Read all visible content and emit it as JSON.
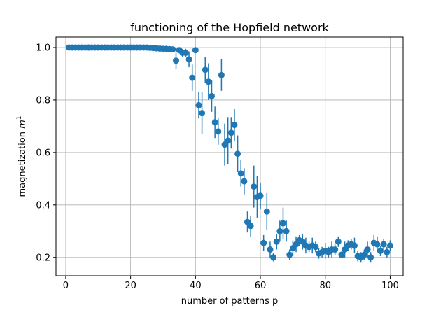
{
  "chart_data": {
    "type": "scatter",
    "title": "functioning of the Hopfield network",
    "xlabel": "number of patterns p",
    "ylabel_main": "magnetization ",
    "ylabel_var": "m",
    "ylabel_sup": "1",
    "xlim": [
      -3,
      104
    ],
    "ylim": [
      0.13,
      1.04
    ],
    "xticks": [
      0,
      20,
      40,
      60,
      80,
      100
    ],
    "yticks": [
      0.2,
      0.4,
      0.6,
      0.8,
      1.0
    ],
    "xtick_labels": [
      "0",
      "20",
      "40",
      "60",
      "80",
      "100"
    ],
    "ytick_labels": [
      "0.2",
      "0.4",
      "0.6",
      "0.8",
      "1.0"
    ],
    "grid": true,
    "color": "#1f77b4",
    "series": [
      {
        "x": [
          1,
          2,
          3,
          4,
          5,
          6,
          7,
          8,
          9,
          10,
          11,
          12,
          13,
          14,
          15,
          16,
          17,
          18,
          19,
          20,
          21,
          22,
          23,
          24,
          25,
          26,
          27,
          28,
          29,
          30,
          31,
          32,
          33,
          34,
          35,
          36,
          37,
          38,
          39,
          40,
          41,
          42,
          43,
          44,
          45,
          46,
          47,
          48,
          49,
          50,
          51,
          52,
          53,
          54,
          55,
          56,
          57,
          58,
          59,
          60,
          61,
          62,
          63,
          64,
          65,
          66,
          67,
          68,
          69,
          70,
          71,
          72,
          73,
          74,
          75,
          76,
          77,
          78,
          79,
          80,
          81,
          82,
          83,
          84,
          85,
          86,
          87,
          88,
          89,
          90,
          91,
          92,
          93,
          94,
          95,
          96,
          97,
          98,
          99,
          100
        ],
        "y": [
          1.0,
          1.0,
          1.0,
          1.0,
          1.0,
          1.0,
          1.0,
          1.0,
          1.0,
          1.0,
          1.0,
          1.0,
          1.0,
          1.0,
          1.0,
          1.0,
          1.0,
          1.0,
          1.0,
          1.0,
          1.0,
          1.0,
          1.0,
          1.0,
          1.0,
          0.999,
          0.998,
          0.997,
          0.996,
          0.995,
          0.995,
          0.994,
          0.993,
          0.95,
          0.99,
          0.98,
          0.98,
          0.955,
          0.885,
          0.99,
          0.78,
          0.75,
          0.915,
          0.87,
          0.815,
          0.715,
          0.68,
          0.895,
          0.63,
          0.645,
          0.675,
          0.705,
          0.595,
          0.52,
          0.49,
          0.335,
          0.32,
          0.47,
          0.43,
          0.435,
          0.255,
          0.375,
          0.23,
          0.2,
          0.26,
          0.3,
          0.33,
          0.3,
          0.21,
          0.235,
          0.25,
          0.265,
          0.26,
          0.245,
          0.24,
          0.245,
          0.24,
          0.215,
          0.22,
          0.225,
          0.22,
          0.23,
          0.23,
          0.26,
          0.21,
          0.23,
          0.245,
          0.25,
          0.245,
          0.205,
          0.2,
          0.21,
          0.23,
          0.2,
          0.255,
          0.25,
          0.225,
          0.25,
          0.22,
          0.245
        ],
        "yerr": [
          0,
          0,
          0,
          0,
          0,
          0,
          0,
          0,
          0,
          0,
          0,
          0,
          0,
          0,
          0,
          0,
          0,
          0,
          0,
          0,
          0,
          0,
          0,
          0,
          0,
          0.003,
          0.004,
          0.005,
          0.006,
          0.007,
          0.007,
          0.008,
          0.01,
          0.03,
          0.01,
          0.015,
          0.015,
          0.03,
          0.05,
          0.01,
          0.05,
          0.08,
          0.05,
          0.07,
          0.06,
          0.06,
          0.05,
          0.06,
          0.08,
          0.09,
          0.06,
          0.06,
          0.07,
          0.05,
          0.05,
          0.04,
          0.04,
          0.08,
          0.08,
          0.05,
          0.03,
          0.07,
          0.03,
          0.015,
          0.03,
          0.04,
          0.06,
          0.04,
          0.02,
          0.03,
          0.03,
          0.02,
          0.03,
          0.03,
          0.02,
          0.03,
          0.02,
          0.02,
          0.02,
          0.03,
          0.02,
          0.03,
          0.02,
          0.02,
          0.01,
          0.03,
          0.02,
          0.02,
          0.03,
          0.02,
          0.02,
          0.02,
          0.03,
          0.02,
          0.03,
          0.03,
          0.02,
          0.02,
          0.02,
          0.02
        ]
      }
    ]
  }
}
